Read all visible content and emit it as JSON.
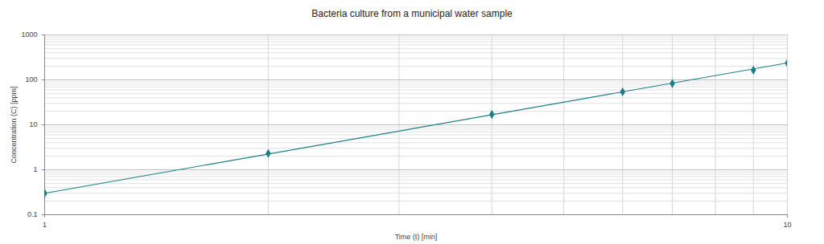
{
  "chart_data": {
    "type": "scatter",
    "title": "Bacteria culture from a municipal water sample",
    "x_label": "Time (t) [min]",
    "y_label": "Concentration (C) [ppm]",
    "x": [
      1,
      2,
      4,
      6,
      7,
      9,
      10
    ],
    "values": [
      0.3,
      2.3,
      17,
      54,
      83,
      164,
      237
    ],
    "color": "#1b7d87",
    "marker": "diamond",
    "trendline": {
      "x": [
        1,
        10
      ],
      "values": [
        0.3,
        238
      ]
    },
    "xlim": [
      1,
      10
    ],
    "ylim": [
      0.1,
      1000
    ],
    "xticks": [
      1,
      10
    ],
    "yticks": [
      0.1,
      1,
      10,
      100,
      1000
    ],
    "log": true,
    "grid": true
  }
}
